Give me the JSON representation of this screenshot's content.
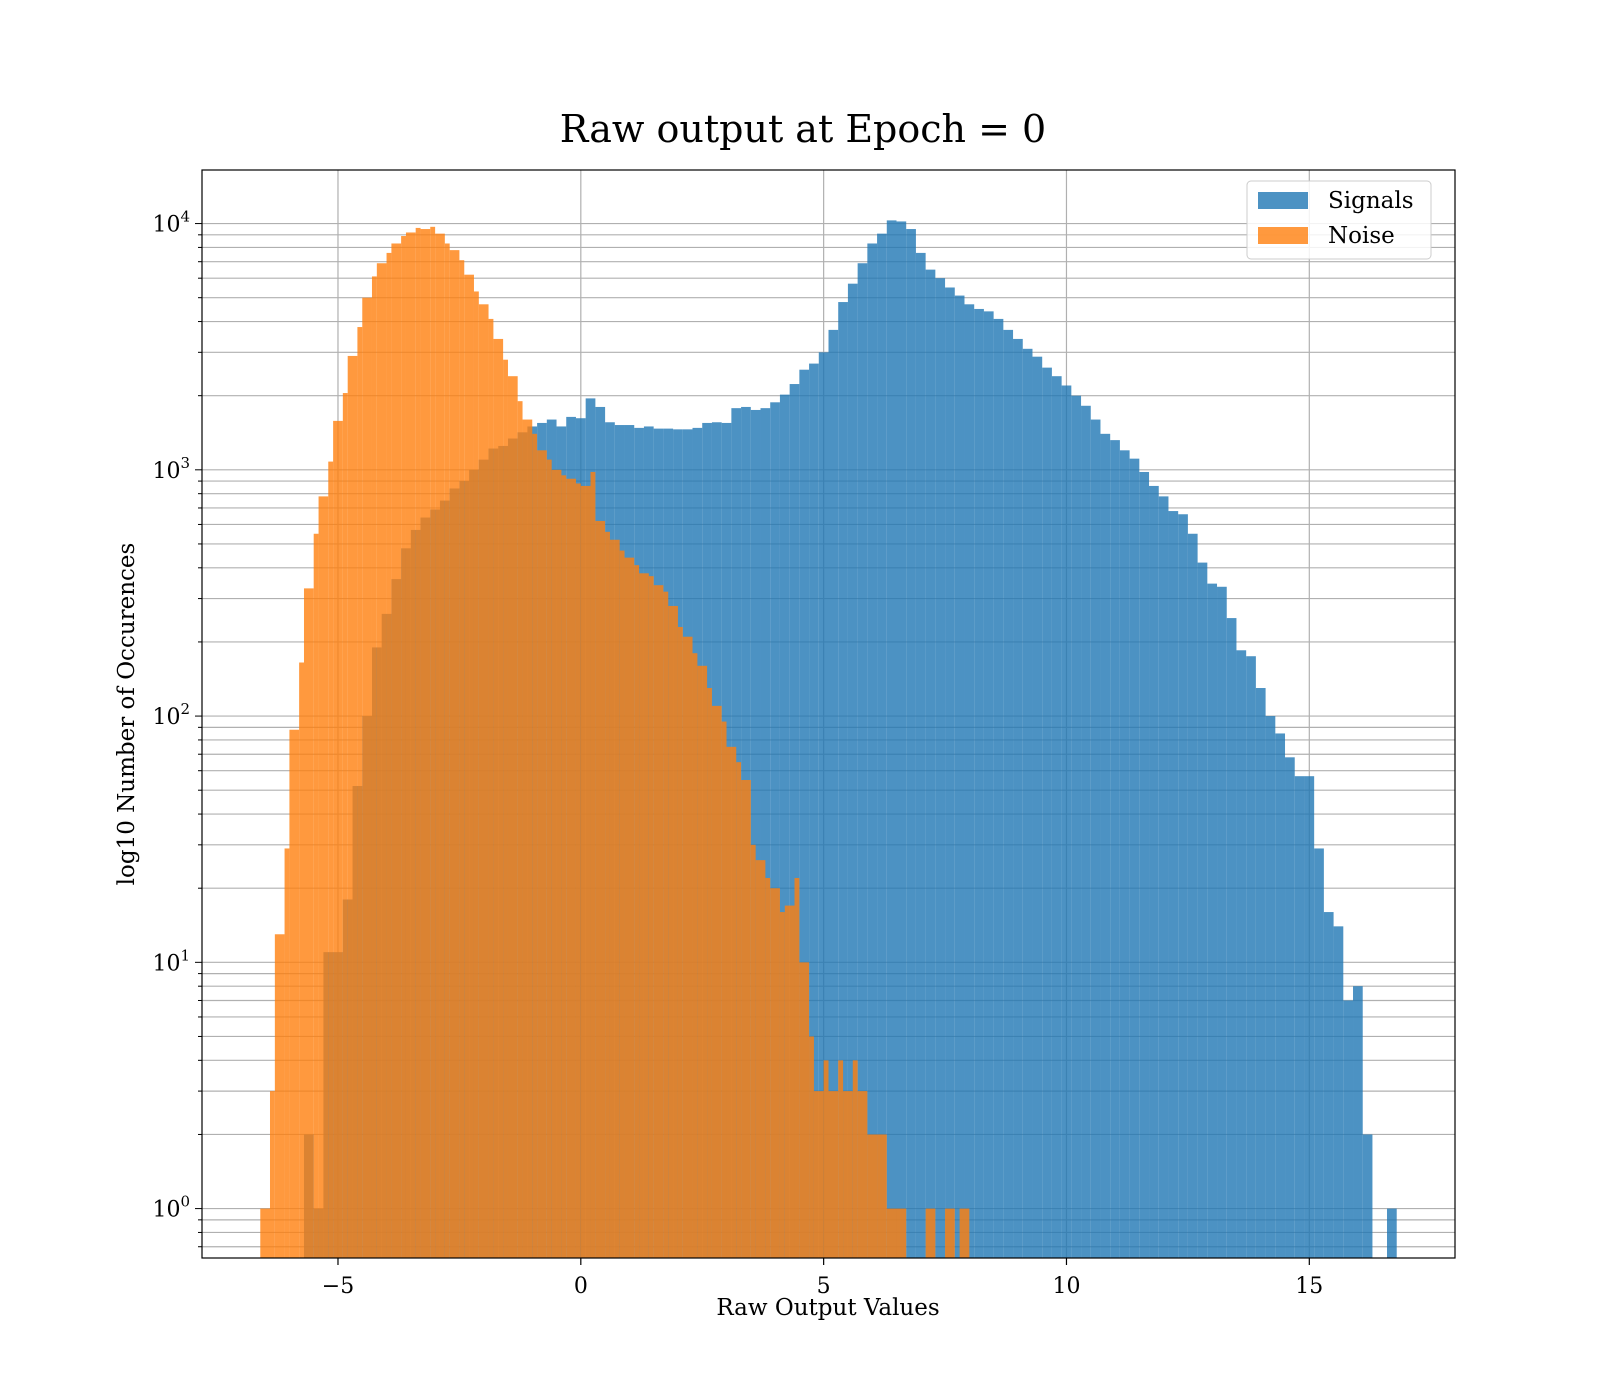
{
  "chart_data": {
    "type": "histogram",
    "title": "Raw output at Epoch = 0",
    "xlabel": "Raw Output Values",
    "ylabel": "log10 Number of Occurences",
    "xscale": "linear",
    "yscale": "log",
    "xlim": [
      -7.8,
      18
    ],
    "ylim": [
      0.63,
      16500
    ],
    "xticks": [
      -5,
      0,
      5,
      10,
      15
    ],
    "xtick_labels": [
      "−5",
      "0",
      "5",
      "10",
      "15"
    ],
    "yticks": [
      1,
      10,
      100,
      1000,
      10000
    ],
    "ytick_labels": [
      {
        "base": "10",
        "exp": "0"
      },
      {
        "base": "10",
        "exp": "1"
      },
      {
        "base": "10",
        "exp": "2"
      },
      {
        "base": "10",
        "exp": "3"
      },
      {
        "base": "10",
        "exp": "4"
      }
    ],
    "grid": true,
    "legend_position": "upper-right",
    "series": [
      {
        "name": "Signals",
        "color": "#1f77b4",
        "opacity": 0.8,
        "bins": [
          [
            -5.7,
            -5.5,
            2
          ],
          [
            -5.5,
            -5.3,
            1
          ],
          [
            -5.3,
            -5.1,
            11
          ],
          [
            -5.1,
            -4.9,
            11
          ],
          [
            -4.9,
            -4.7,
            18
          ],
          [
            -4.7,
            -4.5,
            52
          ],
          [
            -4.5,
            -4.3,
            100
          ],
          [
            -4.3,
            -4.1,
            190
          ],
          [
            -4.1,
            -3.9,
            260
          ],
          [
            -3.9,
            -3.7,
            360
          ],
          [
            -3.7,
            -3.5,
            480
          ],
          [
            -3.5,
            -3.3,
            570
          ],
          [
            -3.3,
            -3.1,
            640
          ],
          [
            -3.1,
            -2.9,
            690
          ],
          [
            -2.9,
            -2.7,
            750
          ],
          [
            -2.7,
            -2.5,
            840
          ],
          [
            -2.5,
            -2.3,
            900
          ],
          [
            -2.3,
            -2.1,
            1000
          ],
          [
            -2.1,
            -1.9,
            1100
          ],
          [
            -1.9,
            -1.7,
            1220
          ],
          [
            -1.7,
            -1.5,
            1250
          ],
          [
            -1.5,
            -1.3,
            1340
          ],
          [
            -1.3,
            -1.1,
            1420
          ],
          [
            -1.1,
            -0.9,
            1500
          ],
          [
            -0.9,
            -0.7,
            1550
          ],
          [
            -0.7,
            -0.5,
            1600
          ],
          [
            -0.5,
            -0.3,
            1500
          ],
          [
            -0.3,
            -0.1,
            1640
          ],
          [
            -0.1,
            0.1,
            1620
          ],
          [
            0.1,
            0.3,
            1950
          ],
          [
            0.3,
            0.5,
            1800
          ],
          [
            0.5,
            0.7,
            1560
          ],
          [
            0.7,
            0.9,
            1520
          ],
          [
            0.9,
            1.1,
            1520
          ],
          [
            1.1,
            1.3,
            1480
          ],
          [
            1.3,
            1.5,
            1500
          ],
          [
            1.5,
            1.7,
            1470
          ],
          [
            1.7,
            1.9,
            1470
          ],
          [
            1.9,
            2.1,
            1460
          ],
          [
            2.1,
            2.3,
            1460
          ],
          [
            2.3,
            2.5,
            1480
          ],
          [
            2.5,
            2.7,
            1550
          ],
          [
            2.7,
            2.9,
            1560
          ],
          [
            2.9,
            3.1,
            1550
          ],
          [
            3.1,
            3.3,
            1780
          ],
          [
            3.3,
            3.5,
            1800
          ],
          [
            3.5,
            3.7,
            1750
          ],
          [
            3.7,
            3.9,
            1780
          ],
          [
            3.9,
            4.1,
            1880
          ],
          [
            4.1,
            4.3,
            2020
          ],
          [
            4.3,
            4.5,
            2230
          ],
          [
            4.5,
            4.7,
            2550
          ],
          [
            4.7,
            4.9,
            2700
          ],
          [
            4.9,
            5.1,
            3000
          ],
          [
            5.1,
            5.3,
            3700
          ],
          [
            5.3,
            5.5,
            4800
          ],
          [
            5.5,
            5.7,
            5700
          ],
          [
            5.7,
            5.9,
            6900
          ],
          [
            5.9,
            6.1,
            8300
          ],
          [
            6.1,
            6.3,
            9100
          ],
          [
            6.3,
            6.5,
            10300
          ],
          [
            6.5,
            6.7,
            10200
          ],
          [
            6.7,
            6.9,
            9500
          ],
          [
            6.9,
            7.1,
            7600
          ],
          [
            7.1,
            7.3,
            6500
          ],
          [
            7.3,
            7.5,
            6000
          ],
          [
            7.5,
            7.7,
            5500
          ],
          [
            7.7,
            7.9,
            5100
          ],
          [
            7.9,
            8.1,
            4700
          ],
          [
            8.1,
            8.3,
            4500
          ],
          [
            8.3,
            8.5,
            4400
          ],
          [
            8.5,
            8.7,
            4100
          ],
          [
            8.7,
            8.9,
            3700
          ],
          [
            8.9,
            9.1,
            3400
          ],
          [
            9.1,
            9.3,
            3100
          ],
          [
            9.3,
            9.5,
            2880
          ],
          [
            9.5,
            9.7,
            2600
          ],
          [
            9.7,
            9.9,
            2400
          ],
          [
            9.9,
            10.1,
            2200
          ],
          [
            10.1,
            10.3,
            2000
          ],
          [
            10.3,
            10.5,
            1820
          ],
          [
            10.5,
            10.7,
            1600
          ],
          [
            10.7,
            10.9,
            1400
          ],
          [
            10.9,
            11.1,
            1320
          ],
          [
            11.1,
            11.3,
            1200
          ],
          [
            11.3,
            11.5,
            1110
          ],
          [
            11.5,
            11.7,
            980
          ],
          [
            11.7,
            11.9,
            860
          ],
          [
            11.9,
            12.1,
            780
          ],
          [
            12.1,
            12.3,
            680
          ],
          [
            12.3,
            12.5,
            660
          ],
          [
            12.5,
            12.7,
            550
          ],
          [
            12.7,
            12.9,
            420
          ],
          [
            12.9,
            13.1,
            345
          ],
          [
            13.1,
            13.3,
            335
          ],
          [
            13.3,
            13.5,
            250
          ],
          [
            13.5,
            13.7,
            185
          ],
          [
            13.7,
            13.9,
            175
          ],
          [
            13.9,
            14.1,
            130
          ],
          [
            14.1,
            14.3,
            100
          ],
          [
            14.3,
            14.5,
            85
          ],
          [
            14.5,
            14.7,
            68
          ],
          [
            14.7,
            14.9,
            57
          ],
          [
            14.9,
            15.1,
            57
          ],
          [
            15.1,
            15.3,
            29
          ],
          [
            15.3,
            15.5,
            16
          ],
          [
            15.5,
            15.7,
            14
          ],
          [
            15.7,
            15.9,
            7
          ],
          [
            15.9,
            16.1,
            8
          ],
          [
            16.1,
            16.3,
            2
          ],
          [
            16.6,
            16.8,
            1
          ]
        ]
      },
      {
        "name": "Noise",
        "color": "#ff7f0e",
        "opacity": 0.8,
        "bins": [
          [
            -6.6,
            -6.4,
            1
          ],
          [
            -6.4,
            -6.3,
            3
          ],
          [
            -6.3,
            -6.1,
            13
          ],
          [
            -6.1,
            -6.0,
            29
          ],
          [
            -6.0,
            -5.8,
            88
          ],
          [
            -5.8,
            -5.7,
            165
          ],
          [
            -5.7,
            -5.5,
            330
          ],
          [
            -5.5,
            -5.4,
            550
          ],
          [
            -5.4,
            -5.2,
            780
          ],
          [
            -5.2,
            -5.1,
            1080
          ],
          [
            -5.1,
            -4.9,
            1580
          ],
          [
            -4.9,
            -4.8,
            2050
          ],
          [
            -4.8,
            -4.6,
            2900
          ],
          [
            -4.6,
            -4.5,
            3800
          ],
          [
            -4.5,
            -4.3,
            5000
          ],
          [
            -4.3,
            -4.2,
            6100
          ],
          [
            -4.2,
            -4.0,
            6900
          ],
          [
            -4.0,
            -3.9,
            7600
          ],
          [
            -3.9,
            -3.7,
            8300
          ],
          [
            -3.7,
            -3.6,
            8900
          ],
          [
            -3.6,
            -3.4,
            9200
          ],
          [
            -3.4,
            -3.3,
            9600
          ],
          [
            -3.3,
            -3.1,
            9500
          ],
          [
            -3.1,
            -3.0,
            9700
          ],
          [
            -3.0,
            -2.8,
            9100
          ],
          [
            -2.8,
            -2.7,
            8300
          ],
          [
            -2.7,
            -2.5,
            7800
          ],
          [
            -2.5,
            -2.4,
            7100
          ],
          [
            -2.4,
            -2.2,
            6200
          ],
          [
            -2.2,
            -2.1,
            5300
          ],
          [
            -2.1,
            -1.9,
            4700
          ],
          [
            -1.9,
            -1.8,
            4100
          ],
          [
            -1.8,
            -1.6,
            3400
          ],
          [
            -1.6,
            -1.5,
            2800
          ],
          [
            -1.5,
            -1.3,
            2400
          ],
          [
            -1.3,
            -1.2,
            1900
          ],
          [
            -1.2,
            -1.0,
            1600
          ],
          [
            -1.0,
            -0.9,
            1400
          ],
          [
            -0.9,
            -0.7,
            1200
          ],
          [
            -0.7,
            -0.6,
            1100
          ],
          [
            -0.6,
            -0.4,
            1000
          ],
          [
            -0.4,
            -0.3,
            950
          ],
          [
            -0.3,
            -0.1,
            920
          ],
          [
            -0.1,
            0.0,
            880
          ],
          [
            0.0,
            0.2,
            860
          ],
          [
            0.2,
            0.3,
            980
          ],
          [
            0.3,
            0.5,
            620
          ],
          [
            0.5,
            0.6,
            560
          ],
          [
            0.6,
            0.8,
            520
          ],
          [
            0.8,
            0.9,
            470
          ],
          [
            0.9,
            1.1,
            440
          ],
          [
            1.1,
            1.2,
            410
          ],
          [
            1.2,
            1.4,
            380
          ],
          [
            1.4,
            1.5,
            370
          ],
          [
            1.5,
            1.7,
            340
          ],
          [
            1.7,
            1.8,
            320
          ],
          [
            1.8,
            2.0,
            280
          ],
          [
            2.0,
            2.1,
            230
          ],
          [
            2.1,
            2.3,
            210
          ],
          [
            2.3,
            2.4,
            180
          ],
          [
            2.4,
            2.6,
            160
          ],
          [
            2.6,
            2.7,
            130
          ],
          [
            2.7,
            2.9,
            110
          ],
          [
            2.9,
            3.0,
            95
          ],
          [
            3.0,
            3.2,
            75
          ],
          [
            3.2,
            3.3,
            65
          ],
          [
            3.3,
            3.5,
            55
          ],
          [
            3.5,
            3.6,
            30
          ],
          [
            3.6,
            3.8,
            26
          ],
          [
            3.8,
            3.9,
            22
          ],
          [
            3.9,
            4.1,
            20
          ],
          [
            4.1,
            4.2,
            16
          ],
          [
            4.2,
            4.4,
            17
          ],
          [
            4.4,
            4.5,
            22
          ],
          [
            4.5,
            4.7,
            10
          ],
          [
            4.7,
            4.8,
            5
          ],
          [
            4.8,
            5.0,
            3
          ],
          [
            5.0,
            5.1,
            4
          ],
          [
            5.1,
            5.3,
            3
          ],
          [
            5.3,
            5.4,
            4
          ],
          [
            5.4,
            5.6,
            3
          ],
          [
            5.6,
            5.7,
            4
          ],
          [
            5.7,
            5.9,
            3
          ],
          [
            5.9,
            6.1,
            2
          ],
          [
            6.1,
            6.3,
            2
          ],
          [
            6.3,
            6.5,
            1
          ],
          [
            6.5,
            6.7,
            1
          ],
          [
            7.1,
            7.3,
            1
          ],
          [
            7.5,
            7.7,
            1
          ],
          [
            7.8,
            8.0,
            1
          ]
        ]
      }
    ]
  }
}
